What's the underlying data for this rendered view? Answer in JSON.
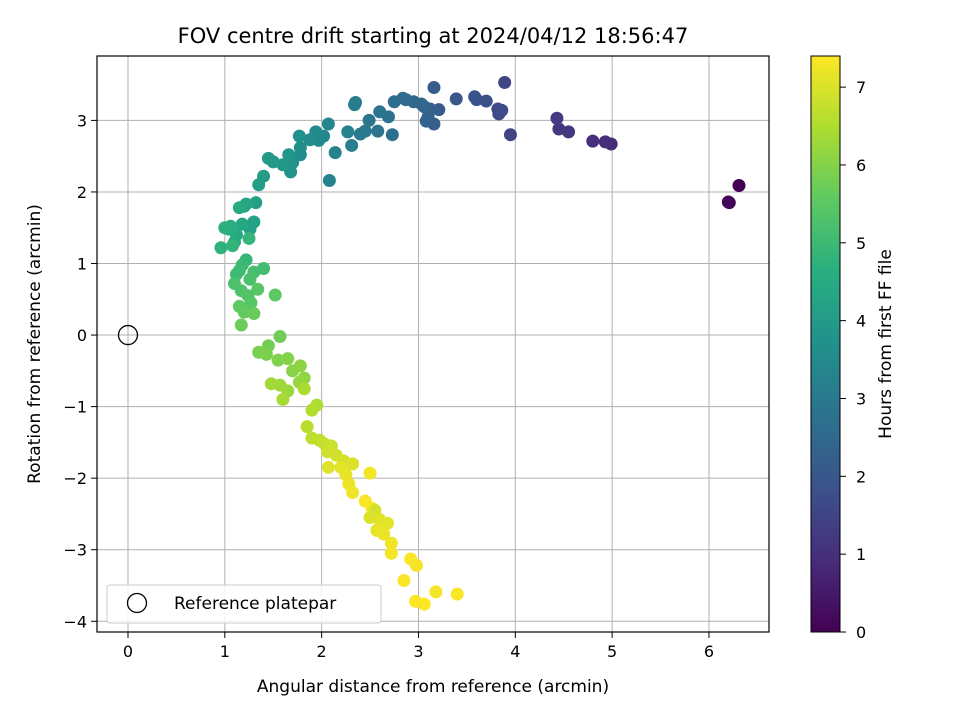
{
  "chart_data": {
    "type": "scatter",
    "title": "FOV centre drift starting at 2024/04/12 18:56:47",
    "xlabel": "Angular distance from reference (arcmin)",
    "ylabel": "Rotation from reference (arcmin)",
    "xlim": [
      -0.32,
      6.62
    ],
    "ylim": [
      -4.15,
      3.9
    ],
    "xticks": [
      0,
      1,
      2,
      3,
      4,
      5,
      6
    ],
    "yticks": [
      -4,
      -3,
      -2,
      -1,
      0,
      1,
      2,
      3
    ],
    "grid": true,
    "legend": {
      "placement": "lower-left",
      "entries": [
        "Reference platepar"
      ]
    },
    "reference_point": {
      "x": 0,
      "y": 0,
      "label": "Reference platepar",
      "marker": "open-circle",
      "color": "#000000"
    },
    "colorbar": {
      "label": "Hours from first FF file",
      "range": [
        0,
        7.4
      ],
      "ticks": [
        0,
        1,
        2,
        3,
        4,
        5,
        6,
        7
      ],
      "colormap": "viridis"
    },
    "points": [
      [
        6.31,
        2.09,
        0.0
      ],
      [
        6.21,
        1.85,
        0.05
      ],
      [
        6.2,
        1.86,
        0.1
      ],
      [
        4.99,
        2.67,
        0.9
      ],
      [
        4.93,
        2.7,
        0.95
      ],
      [
        4.8,
        2.71,
        1.0
      ],
      [
        4.55,
        2.84,
        1.15
      ],
      [
        4.45,
        2.88,
        1.2
      ],
      [
        4.43,
        3.03,
        1.25
      ],
      [
        3.95,
        2.8,
        1.5
      ],
      [
        3.89,
        3.53,
        1.55
      ],
      [
        3.86,
        3.14,
        1.6
      ],
      [
        3.83,
        3.09,
        1.65
      ],
      [
        3.82,
        3.16,
        1.7
      ],
      [
        3.7,
        3.27,
        1.8
      ],
      [
        3.6,
        3.29,
        1.85
      ],
      [
        3.58,
        3.33,
        1.9
      ],
      [
        3.39,
        3.3,
        2.0
      ],
      [
        3.21,
        3.15,
        2.1
      ],
      [
        3.16,
        3.46,
        2.15
      ],
      [
        3.16,
        2.95,
        2.2
      ],
      [
        3.12,
        3.16,
        2.25
      ],
      [
        3.1,
        3.05,
        2.3
      ],
      [
        3.08,
        2.99,
        2.35
      ],
      [
        3.06,
        3.19,
        2.4
      ],
      [
        3.03,
        3.23,
        2.45
      ],
      [
        2.95,
        3.26,
        2.5
      ],
      [
        2.87,
        3.29,
        2.55
      ],
      [
        2.84,
        3.31,
        2.6
      ],
      [
        2.75,
        3.26,
        2.65
      ],
      [
        2.73,
        2.8,
        2.7
      ],
      [
        2.69,
        3.05,
        2.75
      ],
      [
        2.6,
        3.12,
        2.8
      ],
      [
        2.58,
        2.85,
        2.85
      ],
      [
        2.49,
        3.0,
        2.9
      ],
      [
        2.45,
        2.85,
        2.95
      ],
      [
        2.4,
        2.81,
        3.0
      ],
      [
        2.35,
        3.25,
        3.05
      ],
      [
        2.34,
        3.22,
        3.1
      ],
      [
        2.31,
        2.65,
        3.15
      ],
      [
        2.27,
        2.84,
        3.2
      ],
      [
        2.14,
        2.55,
        3.25
      ],
      [
        2.08,
        2.16,
        3.3
      ],
      [
        2.07,
        2.95,
        3.35
      ],
      [
        2.02,
        2.78,
        3.4
      ],
      [
        1.97,
        2.72,
        3.45
      ],
      [
        1.94,
        2.84,
        3.5
      ],
      [
        1.88,
        2.73,
        3.55
      ],
      [
        1.78,
        2.62,
        3.6
      ],
      [
        1.78,
        2.52,
        3.65
      ],
      [
        1.77,
        2.78,
        3.7
      ],
      [
        1.7,
        2.41,
        3.75
      ],
      [
        1.68,
        2.28,
        3.8
      ],
      [
        1.66,
        2.52,
        3.85
      ],
      [
        1.6,
        2.38,
        3.9
      ],
      [
        1.5,
        2.42,
        3.95
      ],
      [
        1.45,
        2.47,
        4.0
      ],
      [
        1.4,
        2.22,
        4.05
      ],
      [
        1.35,
        2.1,
        4.1
      ],
      [
        1.32,
        1.85,
        4.15
      ],
      [
        1.3,
        1.58,
        4.2
      ],
      [
        1.26,
        1.48,
        4.25
      ],
      [
        1.22,
        1.83,
        4.3
      ],
      [
        1.2,
        1.8,
        4.35
      ],
      [
        1.18,
        1.55,
        4.4
      ],
      [
        1.15,
        1.78,
        4.45
      ],
      [
        1.12,
        1.4,
        4.5
      ],
      [
        1.1,
        1.3,
        4.55
      ],
      [
        1.06,
        1.52,
        4.6
      ],
      [
        1.04,
        1.48,
        4.65
      ],
      [
        1.0,
        1.5,
        4.7
      ],
      [
        0.96,
        1.22,
        4.75
      ],
      [
        1.08,
        1.25,
        4.8
      ],
      [
        1.25,
        1.35,
        4.85
      ],
      [
        1.22,
        1.05,
        4.9
      ],
      [
        1.18,
        0.98,
        4.95
      ],
      [
        1.15,
        0.9,
        5.0
      ],
      [
        1.12,
        0.85,
        5.05
      ],
      [
        1.4,
        0.93,
        5.1
      ],
      [
        1.3,
        0.88,
        5.15
      ],
      [
        1.26,
        0.78,
        5.2
      ],
      [
        1.1,
        0.72,
        5.25
      ],
      [
        1.17,
        0.62,
        5.3
      ],
      [
        1.24,
        0.55,
        5.35
      ],
      [
        1.27,
        0.45,
        5.4
      ],
      [
        1.34,
        0.64,
        5.45
      ],
      [
        1.52,
        0.56,
        5.5
      ],
      [
        1.15,
        0.4,
        5.55
      ],
      [
        1.2,
        0.32,
        5.6
      ],
      [
        1.3,
        0.3,
        5.65
      ],
      [
        1.17,
        0.14,
        5.7
      ],
      [
        1.57,
        -0.02,
        5.75
      ],
      [
        1.45,
        -0.15,
        5.8
      ],
      [
        1.35,
        -0.24,
        5.85
      ],
      [
        1.43,
        -0.27,
        5.9
      ],
      [
        1.55,
        -0.35,
        5.95
      ],
      [
        1.65,
        -0.33,
        6.0
      ],
      [
        1.7,
        -0.5,
        6.05
      ],
      [
        1.78,
        -0.43,
        6.1
      ],
      [
        1.82,
        -0.6,
        6.15
      ],
      [
        1.77,
        -0.66,
        6.2
      ],
      [
        1.65,
        -0.78,
        6.25
      ],
      [
        1.57,
        -0.7,
        6.3
      ],
      [
        1.48,
        -0.68,
        6.35
      ],
      [
        1.6,
        -0.9,
        6.4
      ],
      [
        1.82,
        -0.75,
        6.45
      ],
      [
        1.95,
        -0.98,
        6.5
      ],
      [
        1.9,
        -1.05,
        6.55
      ],
      [
        1.85,
        -1.28,
        6.6
      ],
      [
        1.9,
        -1.44,
        6.65
      ],
      [
        1.98,
        -1.47,
        6.7
      ],
      [
        2.03,
        -1.52,
        6.75
      ],
      [
        2.1,
        -1.55,
        6.8
      ],
      [
        2.06,
        -1.63,
        6.85
      ],
      [
        2.15,
        -1.68,
        6.9
      ],
      [
        2.23,
        -1.76,
        6.95
      ],
      [
        2.32,
        -1.8,
        7.0
      ],
      [
        2.07,
        -1.85,
        7.05
      ],
      [
        2.2,
        -1.85,
        7.1
      ],
      [
        2.25,
        -1.95,
        7.15
      ],
      [
        2.28,
        -2.08,
        7.2
      ],
      [
        2.32,
        -2.2,
        7.25
      ],
      [
        2.5,
        -1.93,
        7.3
      ],
      [
        2.45,
        -2.32,
        7.35
      ],
      [
        2.52,
        -2.42,
        7.4
      ]
    ],
    "points_late": [
      [
        2.55,
        -2.45,
        6.9
      ],
      [
        2.5,
        -2.55,
        7.0
      ],
      [
        2.6,
        -2.58,
        7.05
      ],
      [
        2.68,
        -2.63,
        7.1
      ],
      [
        2.57,
        -2.73,
        7.15
      ],
      [
        2.64,
        -2.78,
        7.2
      ],
      [
        2.72,
        -2.91,
        7.25
      ],
      [
        2.72,
        -3.05,
        7.3
      ],
      [
        2.92,
        -3.13,
        7.35
      ],
      [
        2.98,
        -3.22,
        7.3
      ],
      [
        2.85,
        -3.43,
        7.35
      ],
      [
        3.18,
        -3.59,
        7.3
      ],
      [
        3.4,
        -3.62,
        7.35
      ],
      [
        2.97,
        -3.72,
        7.4
      ],
      [
        3.06,
        -3.76,
        7.4
      ]
    ]
  }
}
